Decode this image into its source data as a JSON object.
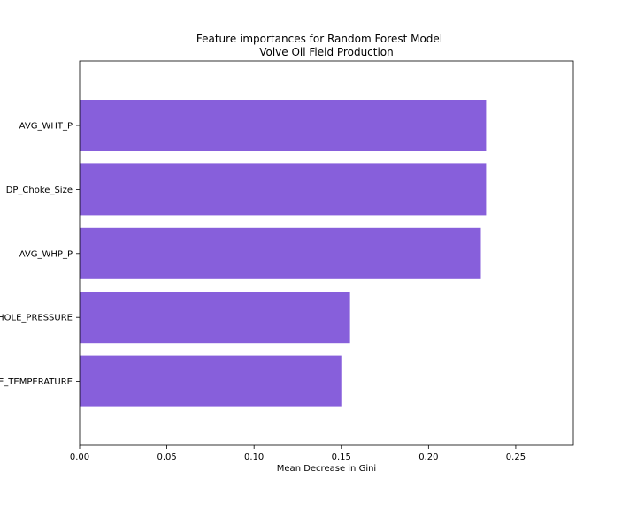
{
  "chart_data": {
    "type": "bar",
    "orientation": "horizontal",
    "title": "Feature importances for Random Forest Model",
    "subtitle": "Volve Oil Field Production",
    "xlabel": "Mean Decrease in Gini",
    "ylabel": "",
    "xlim": [
      0,
      0.283
    ],
    "xticks": [
      "0.00",
      "0.05",
      "0.10",
      "0.15",
      "0.20",
      "0.25"
    ],
    "categories": [
      "AVG_WHT_P",
      "DP_Choke_Size",
      "AVG_WHP_P",
      "AVG_DOWNHOLE_PRESSURE",
      "AVG_DOWNHOLE_TEMPERATURE"
    ],
    "values": [
      0.233,
      0.233,
      0.23,
      0.155,
      0.15
    ],
    "bar_color": "#875fdb",
    "grid": false
  }
}
